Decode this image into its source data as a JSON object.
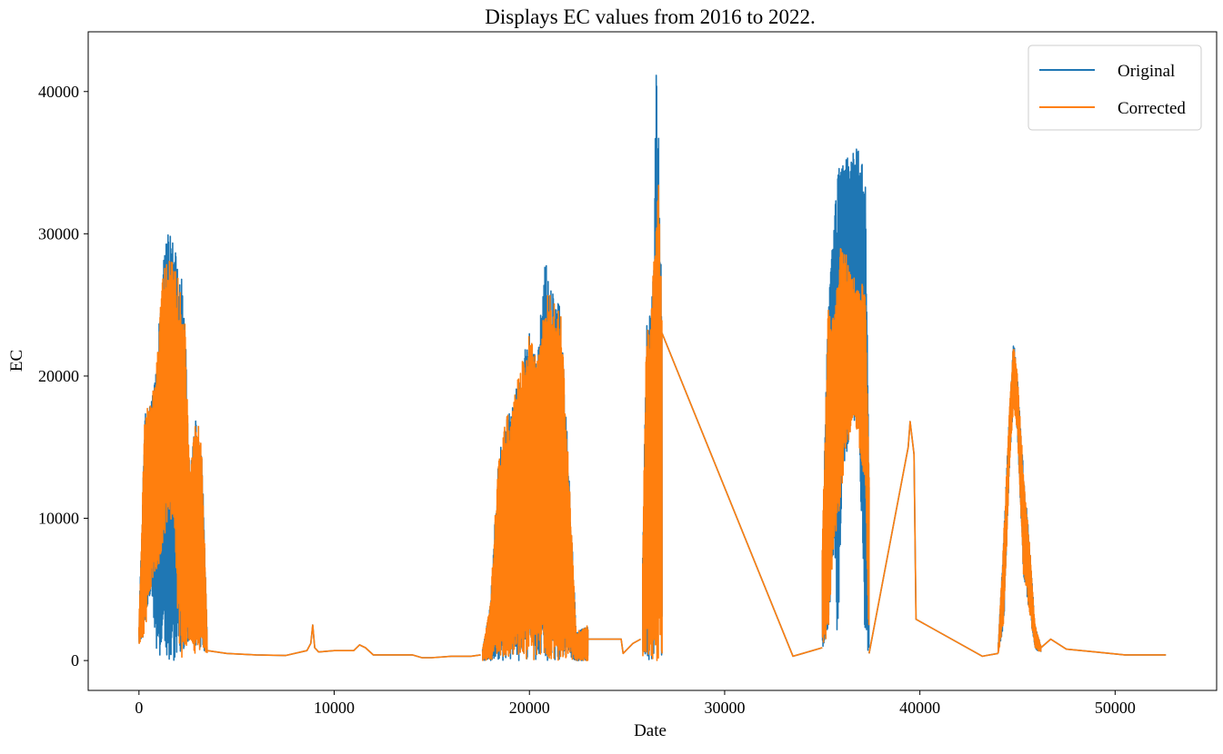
{
  "chart_data": {
    "type": "line",
    "title": "Displays EC values from 2016 to 2022.",
    "xlabel": "Date",
    "ylabel": "EC",
    "xlim": [
      -2600,
      55200
    ],
    "ylim": [
      -2100,
      44200
    ],
    "xticks": [
      0,
      10000,
      20000,
      30000,
      40000,
      50000
    ],
    "yticks": [
      0,
      10000,
      20000,
      30000,
      40000
    ],
    "grid": false,
    "legend_position": "top-right",
    "series": [
      {
        "name": "Original",
        "color": "#1f77b4",
        "segments": [
          {
            "type": "band",
            "x": [
              0,
              300,
              600,
              900,
              1200,
              1500,
              1800,
              2100,
              2350,
              2600,
              2900,
              3200,
              3500
            ],
            "low": [
              900,
              2000,
              5000,
              0,
              0,
              0,
              0,
              0,
              0,
              1500,
              400,
              800,
              500
            ],
            "high": [
              2500,
              17500,
              18000,
              21000,
              28000,
              30200,
              29800,
              28000,
              24500,
              13000,
              17000,
              16000,
              1500
            ]
          },
          {
            "type": "line",
            "x": [
              3500,
              4500,
              6000,
              7500,
              8600,
              8800,
              8900,
              9000,
              9200,
              10000,
              11000,
              11300,
              11600,
              12000,
              13000,
              14000,
              14500,
              15000,
              16000,
              17000,
              17500
            ],
            "y": [
              700,
              500,
              400,
              350,
              700,
              1200,
              2500,
              900,
              600,
              700,
              700,
              1100,
              900,
              400,
              400,
              400,
              200,
              200,
              300,
              300,
              400
            ]
          },
          {
            "type": "band",
            "x": [
              17600,
              18000,
              18400,
              18800,
              19200,
              19600,
              20000,
              20400,
              20800,
              21200,
              21600,
              22000,
              22400,
              22800,
              23000
            ],
            "low": [
              0,
              0,
              0,
              0,
              0,
              0,
              0,
              0,
              0,
              0,
              0,
              0,
              0,
              0,
              0
            ],
            "high": [
              800,
              4000,
              14000,
              17000,
              18500,
              21000,
              23000,
              21200,
              29000,
              26000,
              24800,
              14000,
              2000,
              2300,
              2500
            ]
          },
          {
            "type": "line",
            "x": [
              23000,
              24700,
              24800,
              25300,
              25700
            ],
            "y": [
              1500,
              1500,
              500,
              1200,
              1500
            ]
          },
          {
            "type": "band",
            "x": [
              25800,
              26000,
              26200,
              26400,
              26500,
              26600,
              26800
            ],
            "low": [
              0,
              0,
              0,
              0,
              0,
              0,
              0
            ],
            "high": [
              8000,
              23500,
              24500,
              32000,
              42000,
              39000,
              23000
            ]
          },
          {
            "type": "line",
            "x": [
              26800,
              33500,
              34000,
              35000
            ],
            "y": [
              23000,
              300,
              500,
              900
            ]
          },
          {
            "type": "band",
            "x": [
              35000,
              35300,
              35600,
              35800,
              36000,
              36300,
              36600,
              36900,
              37200,
              37400
            ],
            "low": [
              500,
              2000,
              8000,
              0,
              12000,
              15000,
              17000,
              15000,
              0,
              0
            ],
            "high": [
              8000,
              25000,
              31000,
              34500,
              35200,
              35500,
              35800,
              36100,
              34500,
              13000
            ]
          },
          {
            "type": "line",
            "x": [
              37400,
              39400,
              39500,
              39700,
              39800,
              43200,
              44000
            ],
            "y": [
              500,
              15000,
              16800,
              14500,
              2900,
              300,
              500
            ]
          },
          {
            "type": "band",
            "x": [
              44000,
              44300,
              44600,
              44800,
              45000,
              45300,
              45600,
              45900,
              46200
            ],
            "low": [
              400,
              2500,
              14000,
              18000,
              16000,
              6000,
              3500,
              800,
              600
            ],
            "high": [
              600,
              9000,
              18000,
              22500,
              20000,
              13500,
              8500,
              2500,
              1000
            ]
          },
          {
            "type": "line",
            "x": [
              46200,
              46700,
              47500,
              49000,
              50500,
              52600
            ],
            "y": [
              900,
              1500,
              800,
              600,
              400,
              400
            ]
          }
        ]
      },
      {
        "name": "Corrected",
        "color": "#ff7f0e",
        "segments": [
          {
            "type": "band",
            "x": [
              0,
              300,
              600,
              900,
              1200,
              1500,
              1800,
              2100,
              2350,
              2600,
              2900,
              3200,
              3500
            ],
            "low": [
              900,
              2000,
              5000,
              6000,
              8000,
              10000,
              9000,
              0,
              0,
              1500,
              400,
              800,
              500
            ],
            "high": [
              2500,
              17500,
              18000,
              21000,
              27500,
              28500,
              28000,
              26500,
              24000,
              13000,
              17000,
              16000,
              1500
            ]
          },
          {
            "type": "line",
            "x": [
              3500,
              4500,
              6000,
              7500,
              8600,
              8800,
              8900,
              9000,
              9200,
              10000,
              11000,
              11300,
              11600,
              12000,
              13000,
              14000,
              14500,
              15000,
              16000,
              17000,
              17500
            ],
            "y": [
              700,
              500,
              400,
              350,
              700,
              1200,
              2500,
              900,
              600,
              700,
              700,
              1100,
              900,
              400,
              400,
              400,
              200,
              200,
              300,
              300,
              400
            ]
          },
          {
            "type": "band",
            "x": [
              17600,
              18000,
              18400,
              18800,
              19200,
              19600,
              20000,
              20400,
              20800,
              21200,
              21600,
              22000,
              22400,
              22800,
              23000
            ],
            "low": [
              0,
              0,
              0,
              0,
              0,
              0,
              0,
              0,
              0,
              0,
              0,
              0,
              0,
              0,
              0
            ],
            "high": [
              800,
              4000,
              14000,
              17000,
              18500,
              21000,
              23000,
              21200,
              26000,
              25500,
              24800,
              14000,
              2000,
              2300,
              2500
            ]
          },
          {
            "type": "line",
            "x": [
              23000,
              24700,
              24800,
              25300,
              25700
            ],
            "y": [
              1500,
              1500,
              500,
              1200,
              1500
            ]
          },
          {
            "type": "band",
            "x": [
              25800,
              26000,
              26200,
              26400,
              26500,
              26600,
              26800
            ],
            "low": [
              0,
              0,
              0,
              0,
              0,
              0,
              0
            ],
            "high": [
              8000,
              23500,
              24500,
              29000,
              33000,
              36000,
              23000
            ]
          },
          {
            "type": "line",
            "x": [
              26800,
              33500,
              34000,
              35000
            ],
            "y": [
              23000,
              300,
              500,
              900
            ]
          },
          {
            "type": "band",
            "x": [
              35000,
              35300,
              35600,
              35800,
              36000,
              36300,
              36600,
              36900,
              37200,
              37400
            ],
            "low": [
              500,
              2000,
              8000,
              10000,
              12000,
              15000,
              17000,
              15000,
              12000,
              0
            ],
            "high": [
              8000,
              25000,
              25000,
              27000,
              30000,
              28000,
              27000,
              26500,
              26500,
              13000
            ]
          },
          {
            "type": "line",
            "x": [
              37400,
              39400,
              39500,
              39700,
              39800,
              43200,
              44000
            ],
            "y": [
              500,
              15000,
              16800,
              14500,
              2900,
              300,
              500
            ]
          },
          {
            "type": "band",
            "x": [
              44000,
              44300,
              44600,
              44800,
              45000,
              45300,
              45600,
              45900,
              46200
            ],
            "low": [
              400,
              2500,
              14000,
              18000,
              16000,
              6000,
              3500,
              800,
              600
            ],
            "high": [
              600,
              9000,
              18000,
              22500,
              20000,
              13500,
              8500,
              2500,
              1000
            ]
          },
          {
            "type": "line",
            "x": [
              46200,
              46700,
              47500,
              49000,
              50500,
              52600
            ],
            "y": [
              900,
              1500,
              800,
              600,
              400,
              400
            ]
          }
        ]
      }
    ]
  }
}
